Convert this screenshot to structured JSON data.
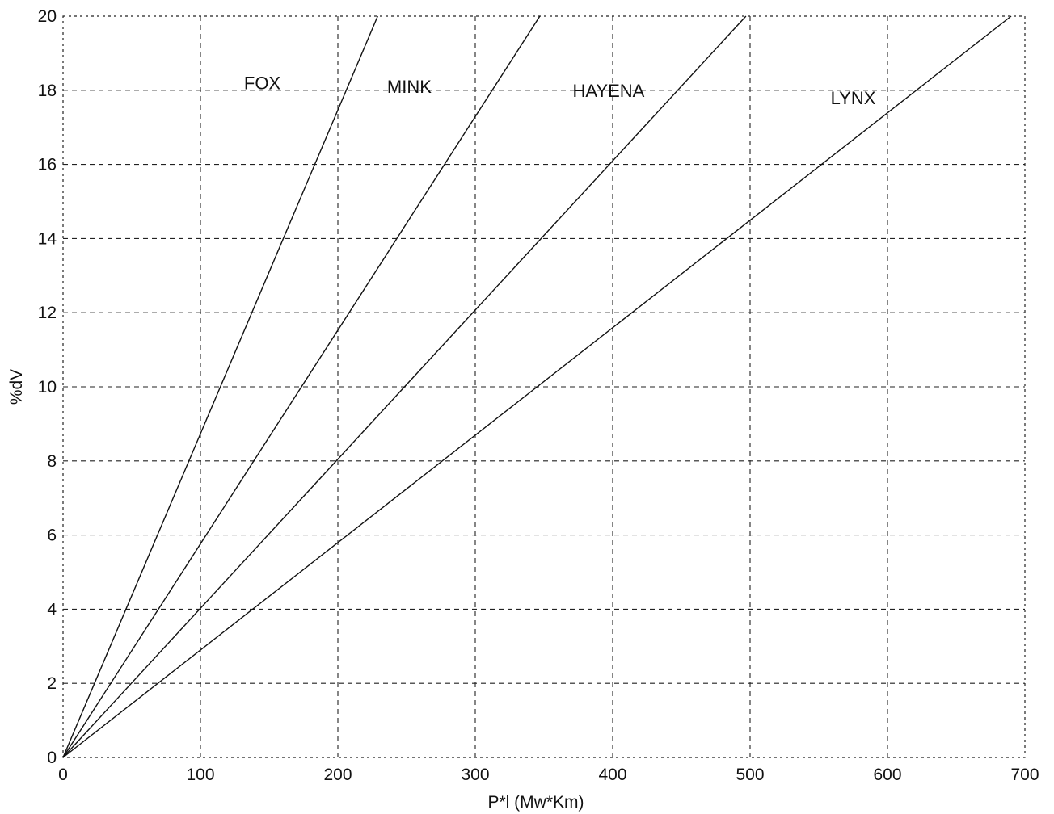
{
  "chart_data": {
    "type": "line",
    "title": "",
    "xlabel": "P*l  (Mw*Km)",
    "ylabel": "%dV",
    "xlim": [
      0,
      700
    ],
    "ylim": [
      0,
      20
    ],
    "xticks": [
      0,
      100,
      200,
      300,
      400,
      500,
      600,
      700
    ],
    "yticks": [
      0,
      2,
      4,
      6,
      8,
      10,
      12,
      14,
      16,
      18,
      20
    ],
    "grid": true,
    "series": [
      {
        "name": "FOX",
        "x": [
          0,
          229
        ],
        "y": [
          0,
          20
        ],
        "label_at": [
          145,
          18.2
        ]
      },
      {
        "name": "MINK",
        "x": [
          0,
          347
        ],
        "y": [
          0,
          20
        ],
        "label_at": [
          252,
          18.1
        ]
      },
      {
        "name": "HAYENA",
        "x": [
          0,
          497
        ],
        "y": [
          0,
          20
        ],
        "label_at": [
          397,
          18.0
        ]
      },
      {
        "name": "LYNX",
        "x": [
          0,
          690
        ],
        "y": [
          0,
          20
        ],
        "label_at": [
          575,
          17.8
        ]
      }
    ]
  }
}
